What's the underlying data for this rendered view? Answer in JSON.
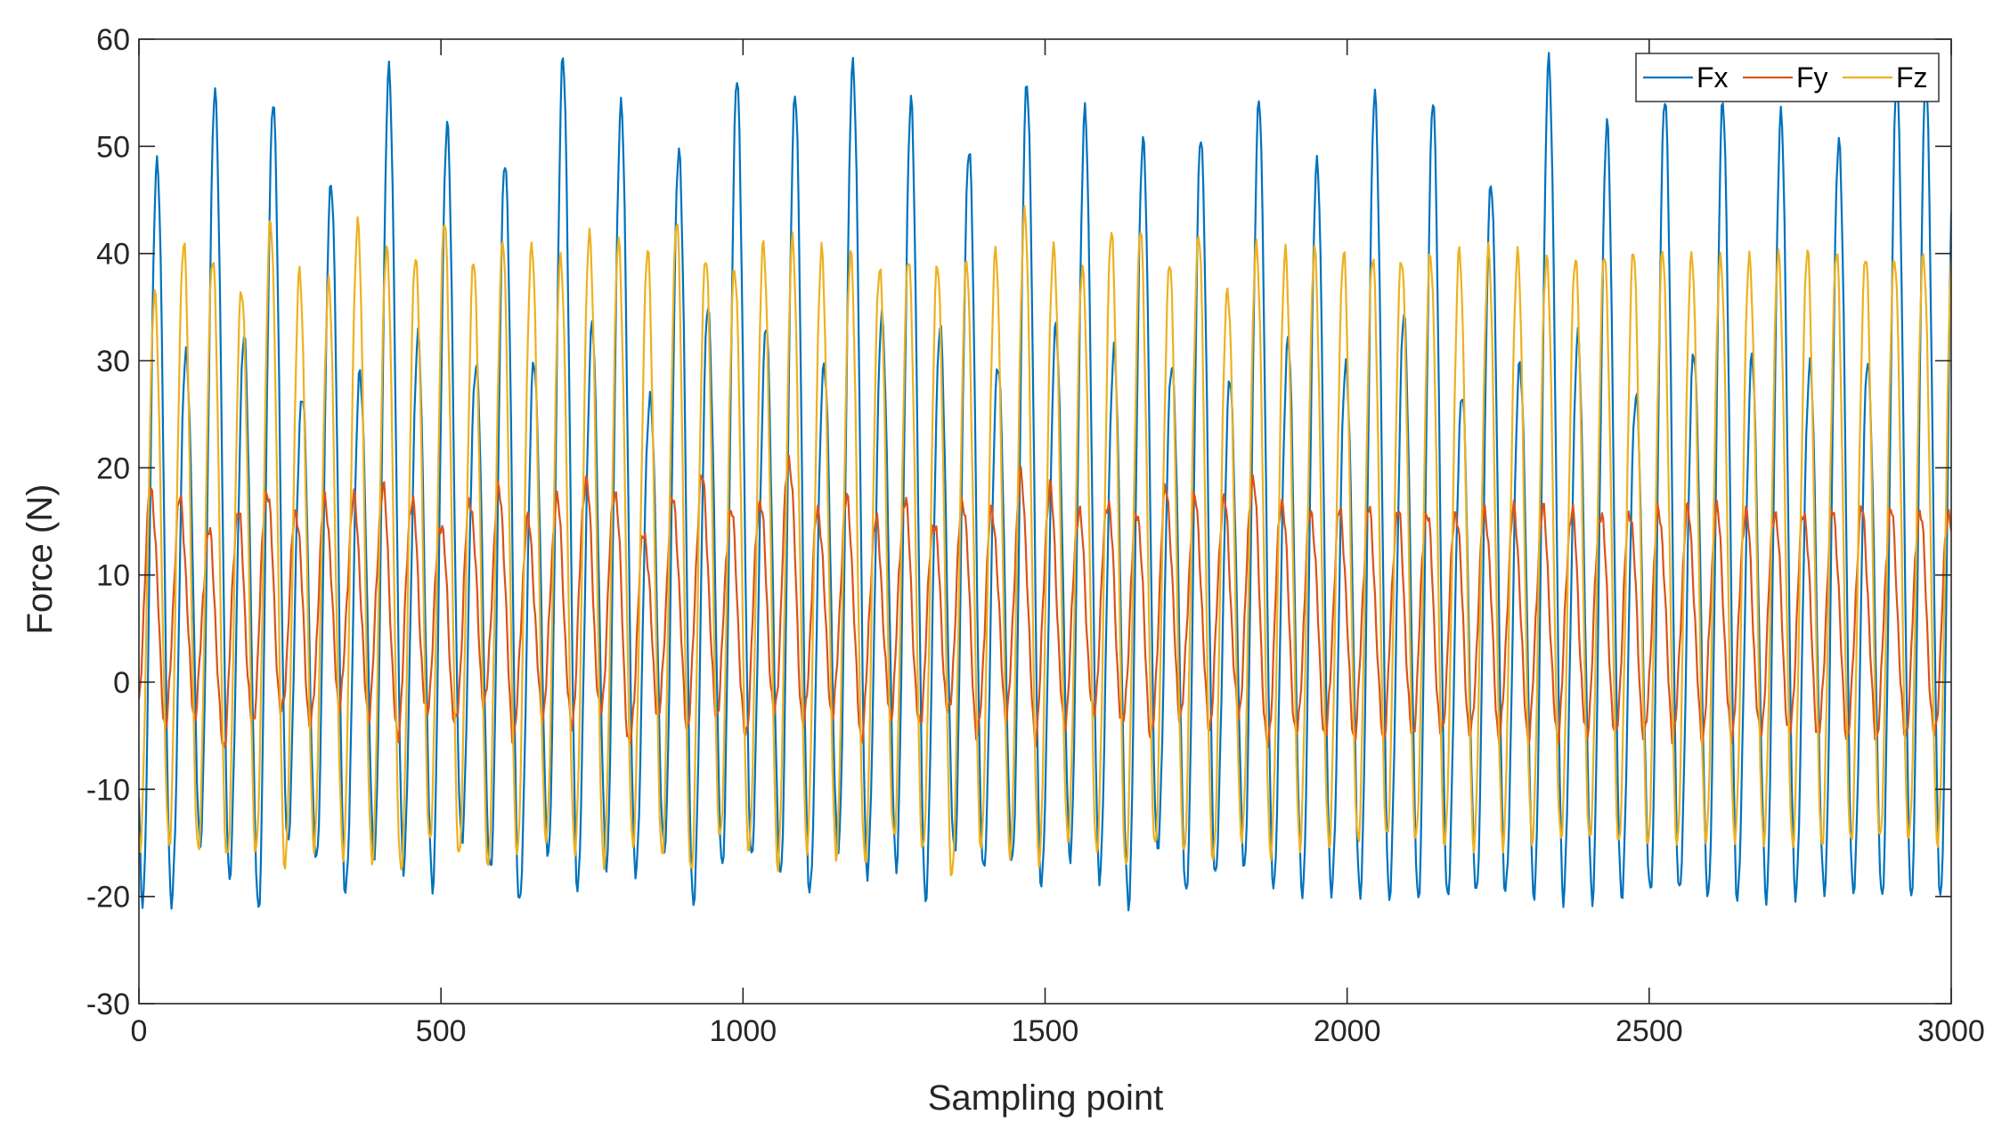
{
  "chart_data": {
    "type": "line",
    "title": "",
    "xlabel": "Sampling point",
    "ylabel": "Force (N)",
    "xlim": [
      0,
      3000
    ],
    "ylim": [
      -30,
      60
    ],
    "xticks": [
      0,
      500,
      1000,
      1500,
      2000,
      2500,
      3000
    ],
    "yticks": [
      -30,
      -20,
      -10,
      0,
      10,
      20,
      30,
      40,
      50,
      60
    ],
    "xtick_labels": [
      "0",
      "500",
      "1000",
      "1500",
      "2000",
      "2500",
      "3000"
    ],
    "ytick_labels": [
      "-30",
      "-20",
      "-10",
      "0",
      "10",
      "20",
      "30",
      "40",
      "50",
      "60"
    ],
    "grid": false,
    "legend_position": "top-right",
    "cycle_period": 96,
    "series": [
      {
        "name": "Fx",
        "color": "#0072BD",
        "peaks": [
          49,
          31,
          55,
          32,
          54,
          27,
          47,
          29,
          57,
          32,
          52,
          30,
          49,
          30,
          58,
          33,
          54,
          27,
          50,
          35,
          56,
          33,
          55,
          30,
          58,
          34,
          54,
          33,
          50,
          30,
          56,
          33,
          53,
          31,
          51,
          30,
          51,
          28,
          54,
          32,
          49,
          30,
          55,
          34,
          54,
          27,
          47,
          30,
          58,
          32,
          52,
          27,
          55,
          31,
          54,
          30,
          53,
          30,
          51,
          30,
          56
        ],
        "troughs": [
          -21,
          -15,
          -18,
          -21,
          -15,
          -17,
          -20,
          -16,
          -17,
          -19,
          -15,
          -18,
          -21,
          -16,
          -19,
          -17,
          -18,
          -16,
          -21,
          -17,
          -16,
          -18,
          -20,
          -16,
          -18,
          -17,
          -20,
          -16,
          -18,
          -17,
          -19,
          -16,
          -18,
          -21,
          -16,
          -20,
          -18,
          -17,
          -19,
          -20
        ]
      },
      {
        "name": "Fy",
        "color": "#D95319",
        "peaks": [
          18,
          17,
          14,
          16,
          18,
          16,
          17,
          17,
          18,
          17,
          15,
          17,
          18,
          15,
          17,
          19,
          18,
          14,
          17,
          19,
          16,
          17,
          21,
          16,
          17,
          15,
          17,
          15,
          17,
          16,
          19,
          18,
          16,
          17,
          16,
          18,
          17,
          17,
          19,
          17,
          16
        ],
        "troughs": [
          -4,
          -3,
          -6,
          -4,
          -3,
          -4,
          -2,
          -3,
          -5,
          -3,
          -4,
          -2,
          -5,
          -3,
          -4,
          -3,
          -6,
          -3,
          -4,
          -3,
          -5,
          -3,
          -4,
          -3,
          -5,
          -3,
          -4,
          -3,
          -5,
          -3,
          -5,
          -4,
          -3,
          -4,
          -5,
          -3,
          -4,
          -3,
          -6,
          -5
        ]
      },
      {
        "name": "Fz",
        "color": "#EDB120",
        "peaks": [
          36,
          41,
          40,
          37,
          43,
          38,
          37,
          43,
          41,
          40,
          43,
          39,
          41,
          41,
          40,
          42,
          41,
          40,
          43,
          40,
          39,
          41,
          41,
          40,
          40,
          39,
          40,
          39,
          39,
          40,
          44,
          41,
          39,
          42,
          42,
          39,
          42,
          37,
          41,
          40,
          40
        ],
        "troughs": [
          -15,
          -16,
          -17,
          -16,
          -17,
          -15,
          -16,
          -17,
          -18,
          -15,
          -16,
          -17,
          -16,
          -15,
          -16,
          -17,
          -15,
          -16,
          -18,
          -15,
          -16,
          -17,
          -15,
          -16,
          -17,
          -15,
          -16,
          -18,
          -15,
          -16,
          -17,
          -15,
          -16,
          -17,
          -15,
          -16,
          -17,
          -15,
          -16,
          -15
        ]
      }
    ]
  }
}
